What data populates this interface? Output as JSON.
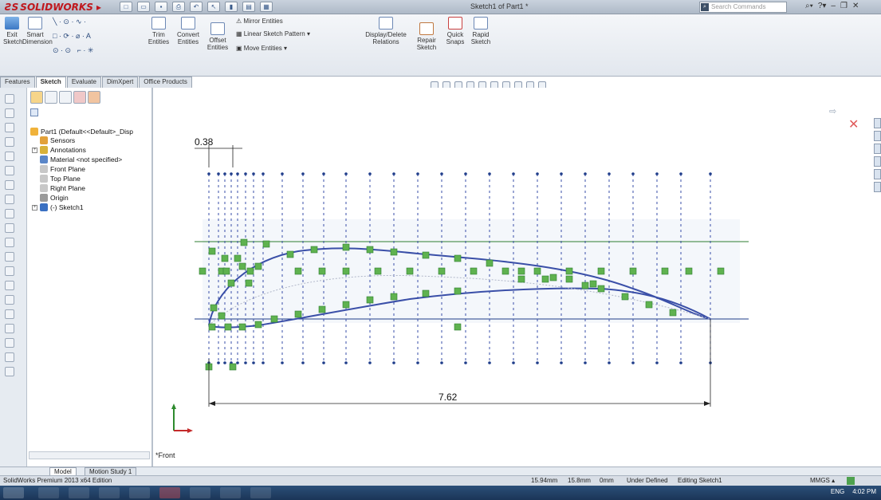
{
  "app": {
    "brand": "SOLIDWORKS",
    "doc_title": "Sketch1 of Part1 *",
    "search_placeholder": "Search Commands"
  },
  "commands": {
    "exit_sketch": "Exit Sketch",
    "smart_dimension": "Smart Dimension",
    "trim_entities": "Trim Entities",
    "convert_entities": "Convert Entities",
    "offset_entities": "Offset Entities",
    "mirror_entities": "Mirror Entities",
    "linear_sketch_pattern": "Linear Sketch Pattern",
    "move_entities": "Move Entities",
    "display_delete_relations": "Display/Delete Relations",
    "repair_sketch": "Repair Sketch",
    "quick_snaps": "Quick Snaps",
    "rapid_sketch": "Rapid Sketch"
  },
  "tabs": [
    "Features",
    "Sketch",
    "Evaluate",
    "DimXpert",
    "Office Products"
  ],
  "active_tab": "Sketch",
  "tree": {
    "part": "Part1  (Default<<Default>_Disp",
    "items": [
      {
        "label": "Sensors",
        "icon": "sensors-icon",
        "color": "#e2a13a"
      },
      {
        "label": "Annotations",
        "icon": "annotations-icon",
        "color": "#d8b23a"
      },
      {
        "label": "Material <not specified>",
        "icon": "material-icon",
        "color": "#5a86c8"
      },
      {
        "label": "Front Plane",
        "icon": "plane-icon",
        "color": "#8a8a8a"
      },
      {
        "label": "Top Plane",
        "icon": "plane-icon",
        "color": "#8a8a8a"
      },
      {
        "label": "Right Plane",
        "icon": "plane-icon",
        "color": "#8a8a8a"
      },
      {
        "label": "Origin",
        "icon": "origin-icon",
        "color": "#6a6a6a"
      },
      {
        "label": "(-) Sketch1",
        "icon": "sketch-icon",
        "color": "#3a70c2"
      }
    ]
  },
  "sketch": {
    "dim_small": "0.38",
    "dim_chord": "7.62",
    "view_label": "*Front"
  },
  "bottom_tabs": [
    "Model",
    "Motion Study 1"
  ],
  "status": {
    "edition": "SolidWorks Premium 2013 x64 Edition",
    "x": "15.94mm",
    "y": "15.8mm",
    "z": "0mm",
    "state": "Under Defined",
    "editing": "Editing Sketch1",
    "units": "MMGS"
  },
  "tray": {
    "lang": "ENG",
    "time": "4:02 PM"
  }
}
